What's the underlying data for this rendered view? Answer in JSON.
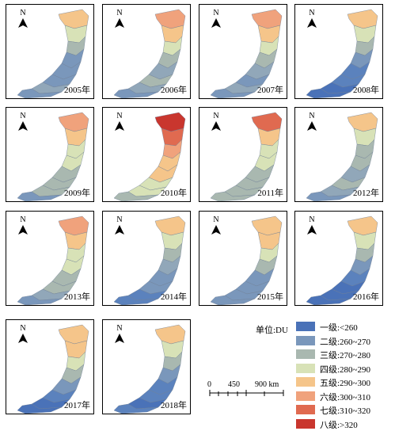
{
  "panels": [
    {
      "year": "2005年",
      "colors": [
        "#f5c58a",
        "#d8e2b7",
        "#a9b8b0",
        "#7a97bb",
        "#7a97bb",
        "#7a97bb",
        "#91a7b9",
        "#7a97bb"
      ]
    },
    {
      "year": "2006年",
      "colors": [
        "#f0a27c",
        "#f5c58a",
        "#d8e2b7",
        "#a9b8b0",
        "#91a7b9",
        "#a9b8b0",
        "#91a7b9",
        "#7a97bb"
      ]
    },
    {
      "year": "2007年",
      "colors": [
        "#f0a27c",
        "#f5c58a",
        "#d8e2b7",
        "#a9b8b0",
        "#91a7b9",
        "#7a97bb",
        "#91a7b9",
        "#7a97bb"
      ]
    },
    {
      "year": "2008年",
      "colors": [
        "#f5c58a",
        "#d8e2b7",
        "#a9b8b0",
        "#7a97bb",
        "#5b82bd",
        "#5b82bd",
        "#4a72b8",
        "#4a72b8"
      ]
    },
    {
      "year": "2009年",
      "colors": [
        "#f0a27c",
        "#f5c58a",
        "#d8e2b7",
        "#d8e2b7",
        "#a9b8b0",
        "#a9b8b0",
        "#a9b8b0",
        "#7a97bb"
      ]
    },
    {
      "year": "2010年",
      "colors": [
        "#c9362e",
        "#e06a50",
        "#f0a27c",
        "#f5c58a",
        "#f5c58a",
        "#d8e2b7",
        "#d8e2b7",
        "#a9b8b0"
      ]
    },
    {
      "year": "2011年",
      "colors": [
        "#e06a50",
        "#f5c58a",
        "#d8e2b7",
        "#d8e2b7",
        "#a9b8b0",
        "#a9b8b0",
        "#a9b8b0",
        "#a9b8b0"
      ]
    },
    {
      "year": "2012年",
      "colors": [
        "#f5c58a",
        "#d8e2b7",
        "#a9b8b0",
        "#a9b8b0",
        "#91a7b9",
        "#a9b8b0",
        "#91a7b9",
        "#7a97bb"
      ]
    },
    {
      "year": "2013年",
      "colors": [
        "#f0a27c",
        "#f5c58a",
        "#d8e2b7",
        "#d8e2b7",
        "#a9b8b0",
        "#a9b8b0",
        "#91a7b9",
        "#7a97bb"
      ]
    },
    {
      "year": "2014年",
      "colors": [
        "#f5c58a",
        "#d8e2b7",
        "#a9b8b0",
        "#91a7b9",
        "#7a97bb",
        "#7a97bb",
        "#5b82bd",
        "#5b82bd"
      ]
    },
    {
      "year": "2015年",
      "colors": [
        "#f5c58a",
        "#f5c58a",
        "#d8e2b7",
        "#a9b8b0",
        "#7a97bb",
        "#7a97bb",
        "#7a97bb",
        "#7a97bb"
      ]
    },
    {
      "year": "2016年",
      "colors": [
        "#f5c58a",
        "#d8e2b7",
        "#a9b8b0",
        "#7a97bb",
        "#5b82bd",
        "#4a72b8",
        "#4a72b8",
        "#4a72b8"
      ]
    },
    {
      "year": "2017年",
      "colors": [
        "#f5c58a",
        "#f5c58a",
        "#d8e2b7",
        "#a9b8b0",
        "#7a97bb",
        "#5b82bd",
        "#4a72b8",
        "#4a72b8"
      ]
    },
    {
      "year": "2018年",
      "colors": [
        "#f5c58a",
        "#d8e2b7",
        "#a9b8b0",
        "#7a97bb",
        "#5b82bd",
        "#5b82bd",
        "#4a72b8",
        "#5b82bd"
      ]
    }
  ],
  "north_label": "N",
  "legend": {
    "title": "单位:DU",
    "items": [
      {
        "label": "一级:<260",
        "color": "#4a72b8"
      },
      {
        "label": "二级:260~270",
        "color": "#7a97bb"
      },
      {
        "label": "三级:270~280",
        "color": "#a9b8b0"
      },
      {
        "label": "四级:280~290",
        "color": "#d8e2b7"
      },
      {
        "label": "五级:290~300",
        "color": "#f5c58a"
      },
      {
        "label": "六级:300~310",
        "color": "#f0a27c"
      },
      {
        "label": "七级:310~320",
        "color": "#e06a50"
      },
      {
        "label": "八级:>320",
        "color": "#c9362e"
      }
    ]
  },
  "scale": {
    "ticks": [
      "0",
      "450",
      "900 km"
    ]
  }
}
